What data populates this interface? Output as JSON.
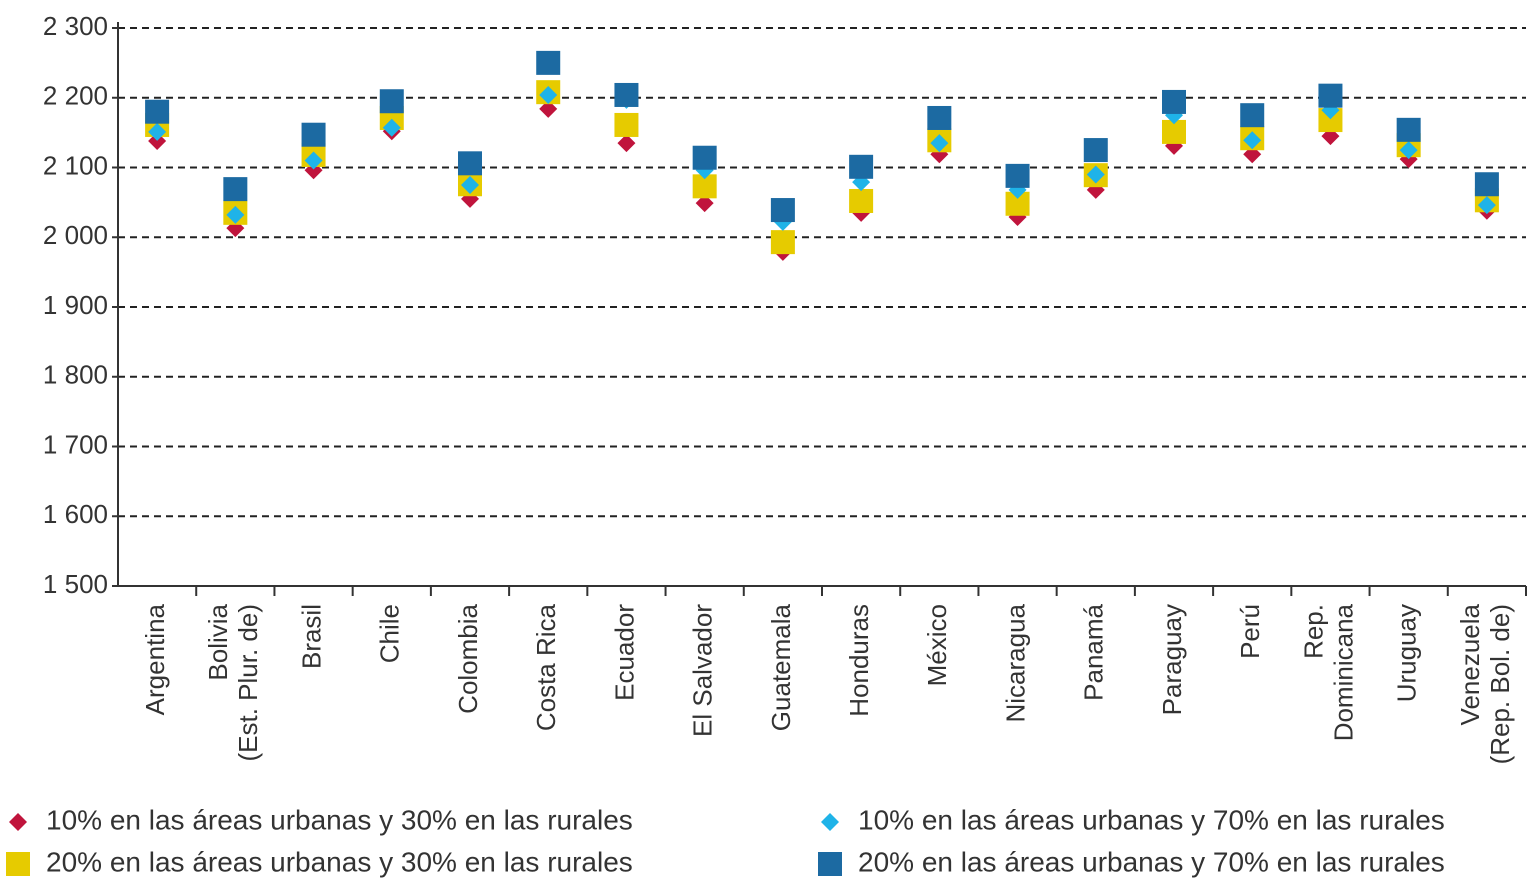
{
  "chart_data": {
    "type": "scatter",
    "categories": [
      [
        "Argentina"
      ],
      [
        "Bolivia",
        "(Est. Plur. de)"
      ],
      [
        "Brasil"
      ],
      [
        "Chile"
      ],
      [
        "Colombia"
      ],
      [
        "Costa Rica"
      ],
      [
        "Ecuador"
      ],
      [
        "El Salvador"
      ],
      [
        "Guatemala"
      ],
      [
        "Honduras"
      ],
      [
        "México"
      ],
      [
        "Nicaragua"
      ],
      [
        "Panamá"
      ],
      [
        "Paraguay"
      ],
      [
        "Perú"
      ],
      [
        "Rep.",
        "Dominicana"
      ],
      [
        "Uruguay"
      ],
      [
        "Venezuela",
        "(Rep. Bol. de)"
      ]
    ],
    "series": [
      {
        "name": "10% en las áreas urbanas y 30% en las rurales",
        "color": "#c0143c",
        "marker": "diamond",
        "values": [
          2138,
          2013,
          2096,
          2152,
          2055,
          2184,
          2135,
          2049,
          1979,
          2035,
          2119,
          2029,
          2068,
          2131,
          2119,
          2145,
          2112,
          2038
        ]
      },
      {
        "name": "20% en las áreas urbanas y 30% en las rurales",
        "color": "#e6cb00",
        "marker": "square",
        "values": [
          2161,
          2035,
          2118,
          2171,
          2076,
          2208,
          2161,
          2073,
          1993,
          2052,
          2139,
          2048,
          2089,
          2151,
          2142,
          2168,
          2132,
          2053
        ]
      },
      {
        "name": "10% en las áreas urbanas y 70% en las rurales",
        "color": "#1fb3e8",
        "marker": "diamond",
        "values": [
          2151,
          2032,
          2110,
          2157,
          2075,
          2204,
          2197,
          2096,
          2022,
          2079,
          2135,
          2068,
          2090,
          2175,
          2139,
          2182,
          2125,
          2046
        ]
      },
      {
        "name": "20% en las áreas urbanas y 70% en las rurales",
        "color": "#1c6aa2",
        "marker": "square",
        "values": [
          2180,
          2069,
          2147,
          2195,
          2106,
          2250,
          2204,
          2114,
          2039,
          2101,
          2171,
          2088,
          2125,
          2194,
          2175,
          2203,
          2154,
          2076
        ]
      }
    ],
    "ylim": [
      1500,
      2300
    ],
    "yticks": [
      {
        "value": 1500,
        "label": "1 500"
      },
      {
        "value": 1600,
        "label": "1 600"
      },
      {
        "value": 1700,
        "label": "1 700"
      },
      {
        "value": 1800,
        "label": "1 800"
      },
      {
        "value": 1900,
        "label": "1 900"
      },
      {
        "value": 2000,
        "label": "2 000"
      },
      {
        "value": 2100,
        "label": "2 100"
      },
      {
        "value": 2200,
        "label": "2 200"
      },
      {
        "value": 2300,
        "label": "2 300"
      }
    ],
    "grid": true
  }
}
